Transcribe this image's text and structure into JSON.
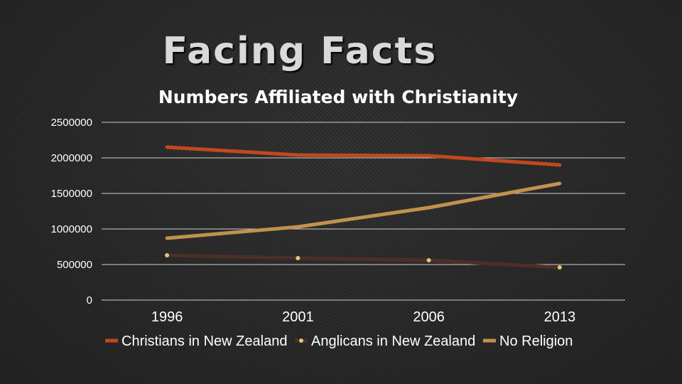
{
  "slide": {
    "title": "Facing Facts"
  },
  "chart_data": {
    "type": "line",
    "title": "Numbers Affiliated with Christianity",
    "xlabel": "",
    "ylabel": "",
    "categories": [
      "1996",
      "2001",
      "2006",
      "2013"
    ],
    "ylim": [
      0,
      2500000
    ],
    "yticks": [
      "0",
      "500000",
      "1000000",
      "1500000",
      "2000000",
      "2500000"
    ],
    "grid": true,
    "legend_position": "bottom",
    "series": [
      {
        "name": "Christians in New Zealand",
        "values": [
          2150000,
          2040000,
          2030000,
          1900000
        ],
        "color": "#c0481f",
        "marker": false
      },
      {
        "name": "Anglicans in New Zealand",
        "values": [
          630000,
          590000,
          560000,
          460000
        ],
        "color": "#4e2e28",
        "marker": true,
        "marker_color": "#e2c87a"
      },
      {
        "name": "No Religion",
        "values": [
          870000,
          1030000,
          1300000,
          1640000
        ],
        "color": "#c1924e",
        "marker": false
      }
    ]
  }
}
